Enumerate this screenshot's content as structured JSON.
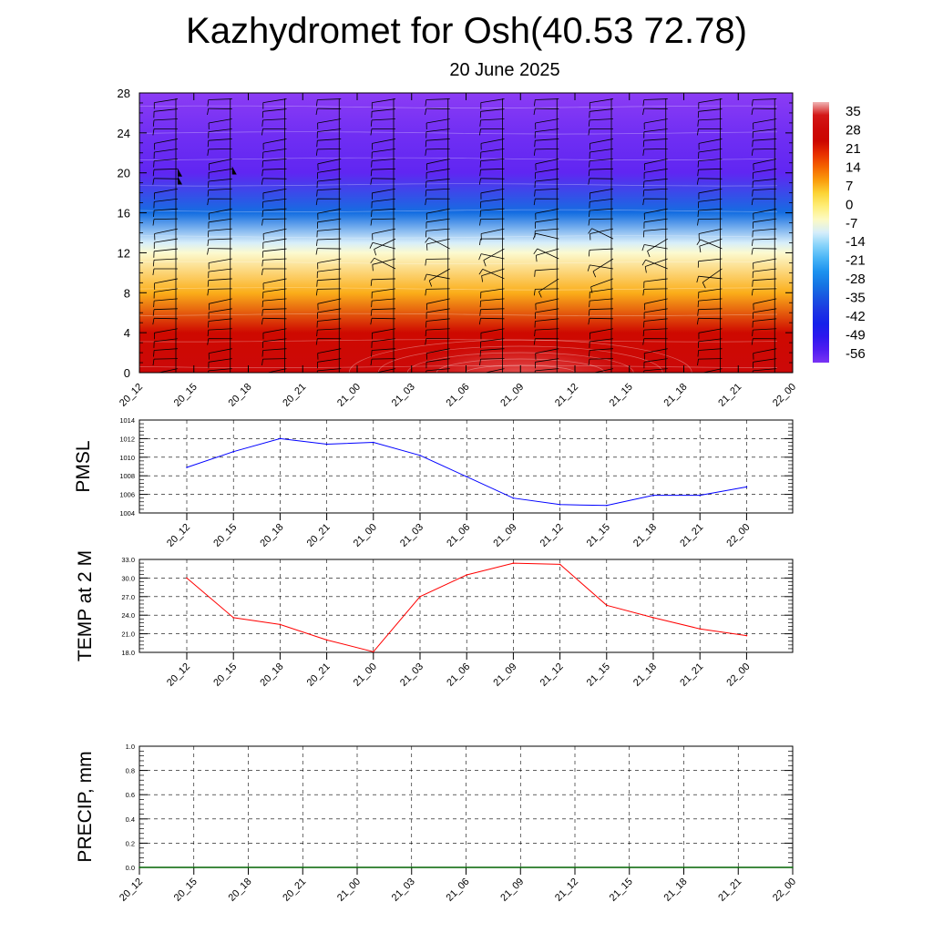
{
  "header": {
    "title": "Kazhydromet for Osh(40.53 72.78)",
    "subtitle": "20 June 2025"
  },
  "colorbar": {
    "labels": [
      "35",
      "28",
      "21",
      "14",
      "7",
      "0",
      "-7",
      "-14",
      "-21",
      "-28",
      "-35",
      "-42",
      "-49",
      "-56"
    ]
  },
  "chart_data": [
    {
      "type": "heatmap",
      "title": "",
      "xlabel": "",
      "ylabel": "",
      "ylim": [
        0,
        28
      ],
      "y_ticks": [
        "0",
        "4",
        "8",
        "12",
        "16",
        "20",
        "24",
        "28"
      ],
      "categories": [
        "20_12",
        "20_15",
        "20_18",
        "20_21",
        "21_00",
        "21_03",
        "21_06",
        "21_09",
        "21_12",
        "21_15",
        "21_18",
        "21_21",
        "22_00"
      ],
      "levels_km": [
        0,
        4,
        8,
        12,
        13,
        16,
        20,
        24,
        28
      ],
      "temperature_profile_c": [
        25,
        20,
        4,
        -10,
        -14,
        -35,
        -60,
        -62,
        -65
      ],
      "surface_warm_max_c": 35,
      "surface_warm_peak_time": "21_09",
      "wind_barbs": true
    },
    {
      "type": "line",
      "title": "",
      "ylabel": "PMSL",
      "ylim": [
        1004,
        1014
      ],
      "y_ticks": [
        "1004",
        "1006",
        "1008",
        "1010",
        "1012",
        "1014"
      ],
      "categories": [
        "20_12",
        "20_15",
        "20_18",
        "20_21",
        "21_00",
        "21_03",
        "21_06",
        "21_09",
        "21_12",
        "21_15",
        "21_18",
        "21_21",
        "22_00"
      ],
      "series": [
        {
          "color": "#0000ff",
          "values": [
            1008.9,
            1010.6,
            1012.0,
            1011.4,
            1011.6,
            1010.2,
            1007.9,
            1005.6,
            1004.9,
            1004.8,
            1005.9,
            1005.9,
            1006.8
          ]
        }
      ]
    },
    {
      "type": "line",
      "title": "",
      "ylabel": "TEMP at 2 M",
      "ylim": [
        18,
        33
      ],
      "y_ticks": [
        "18.0",
        "21.0",
        "24.0",
        "27.0",
        "30.0",
        "33.0"
      ],
      "categories": [
        "20_12",
        "20_15",
        "20_18",
        "20_21",
        "21_00",
        "21_03",
        "21_06",
        "21_09",
        "21_12",
        "21_15",
        "21_18",
        "21_21",
        "22_00"
      ],
      "series": [
        {
          "color": "#ff0000",
          "values": [
            30.0,
            23.6,
            22.5,
            20.0,
            18.1,
            27.0,
            30.5,
            32.4,
            32.2,
            25.6,
            23.6,
            21.8,
            20.7
          ]
        }
      ]
    },
    {
      "type": "line",
      "title": "",
      "ylabel": "PRECIP, mm",
      "ylim": [
        0,
        1
      ],
      "y_ticks": [
        "0.0",
        "0.2",
        "0.4",
        "0.6",
        "0.8",
        "1.0"
      ],
      "categories": [
        "20_12",
        "20_15",
        "20_18",
        "20_21",
        "21_00",
        "21_03",
        "21_06",
        "21_09",
        "21_12",
        "21_15",
        "21_18",
        "21_21",
        "22_00"
      ],
      "series": [
        {
          "color": "#006400",
          "values": [
            0,
            0,
            0,
            0,
            0,
            0,
            0,
            0,
            0,
            0,
            0,
            0,
            0
          ]
        }
      ]
    }
  ]
}
